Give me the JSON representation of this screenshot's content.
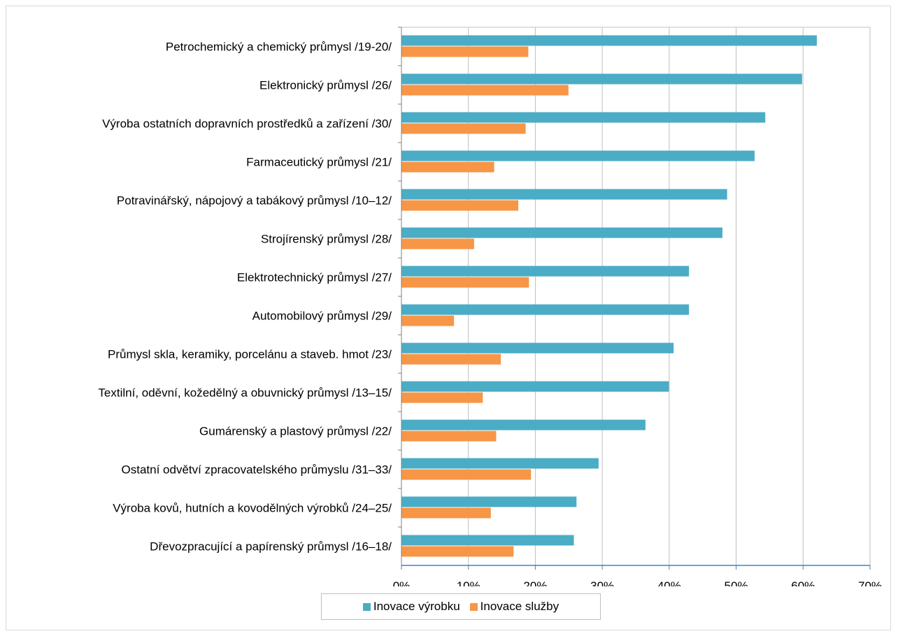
{
  "chart_data": {
    "type": "bar",
    "orientation": "horizontal",
    "categories": [
      "Petrochemický a chemický průmysl /19-20/",
      "Elektronický průmysl /26/",
      "Výroba ostatních dopravních prostředků a zařízení /30/",
      "Farmaceutický průmysl /21/",
      "Potravinářský, nápojový a tabákový průmysl /10–12/",
      "Strojírenský průmysl /28/",
      "Elektrotechnický průmysl /27/",
      "Automobilový průmysl /29/",
      "Průmysl skla, keramiky, porcelánu a staveb. hmot /23/",
      "Textilní, oděvní, kožedělný a obuvnický průmysl /13–15/",
      "Gumárenský a plastový průmysl /22/",
      "Ostatní odvětví zpracovatelského průmyslu /31–33/",
      "Výroba kovů, hutních a kovodělných výrobků /24–25/",
      "Dřevozpracující a papírenský průmysl /16–18/"
    ],
    "series": [
      {
        "name": "Inovace výrobku",
        "color": "#4bacc6",
        "values": [
          62.0,
          59.8,
          54.3,
          52.7,
          48.6,
          47.9,
          42.9,
          42.9,
          40.6,
          39.9,
          36.4,
          29.4,
          26.1,
          25.7
        ]
      },
      {
        "name": "Inovace služby",
        "color": "#f79646",
        "values": [
          18.9,
          24.9,
          18.5,
          13.8,
          17.4,
          10.8,
          19.0,
          7.8,
          14.8,
          12.1,
          14.1,
          19.3,
          13.3,
          16.7
        ]
      }
    ],
    "xlim": [
      0,
      70
    ],
    "xticks": [
      "0%",
      "10%",
      "20%",
      "30%",
      "40%",
      "50%",
      "60%",
      "70%"
    ],
    "grid": true,
    "legend_position": "bottom",
    "title": "",
    "xlabel": "",
    "ylabel": ""
  }
}
